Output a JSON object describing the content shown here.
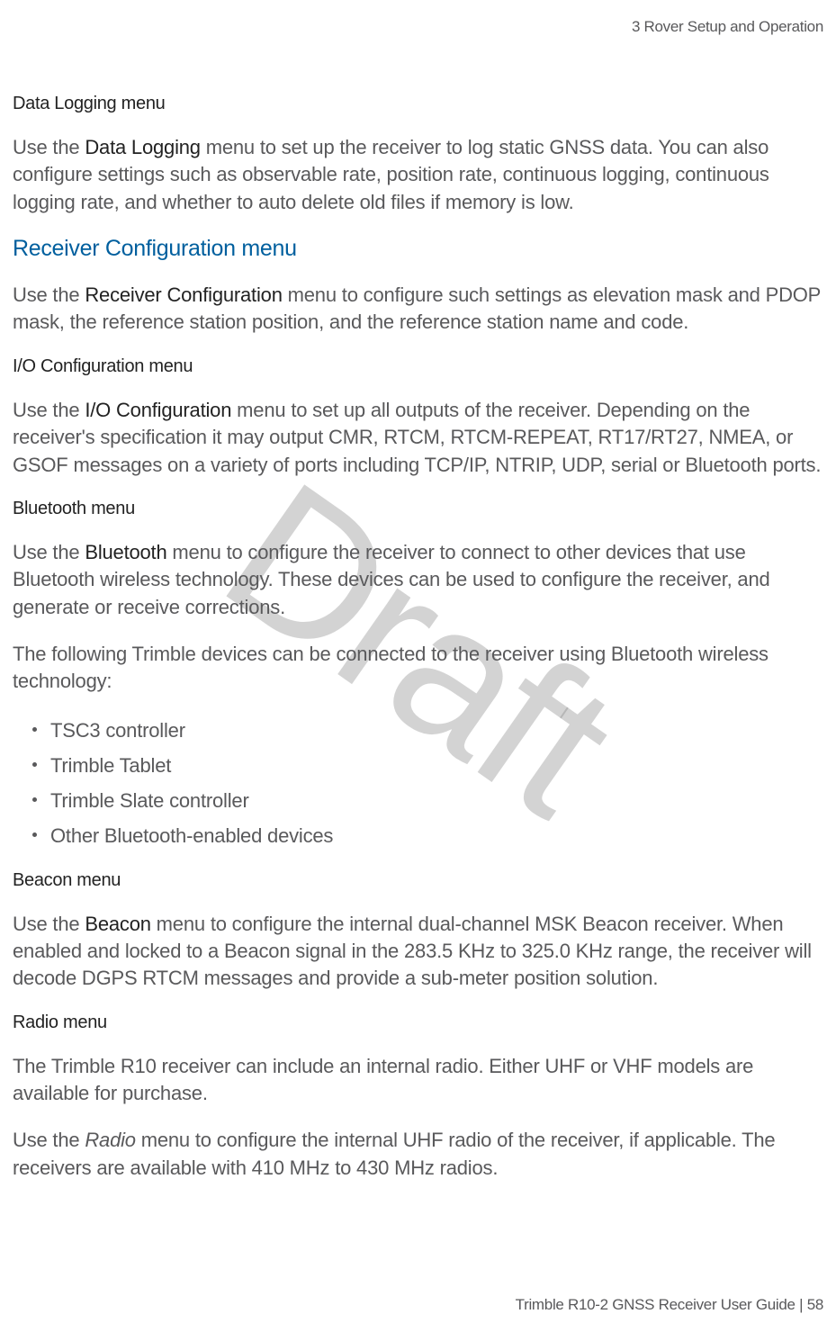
{
  "header": {
    "chapter": "3   Rover Setup and Operation"
  },
  "watermark": "Draft",
  "sections": {
    "data_logging": {
      "heading": "Data Logging menu",
      "para_pre": "Use the ",
      "bold": "Data Logging",
      "para_post": " menu to set up the receiver to log static GNSS data. You can also configure settings such as observable rate, position rate, continuous logging, continuous logging rate, and whether to auto delete old files if memory is low."
    },
    "receiver_config": {
      "heading": "Receiver Configuration menu",
      "para_pre": "Use the ",
      "bold": "Receiver Configuration",
      "para_post": " menu to configure such settings as elevation mask and PDOP mask, the reference station position, and the reference station name and code."
    },
    "io_config": {
      "heading": "I/O Configuration menu",
      "para_pre": "Use the ",
      "bold": "I/O Configuration",
      "para_post": " menu to set up all outputs of the receiver. Depending on the receiver's specification it may output CMR, RTCM, RTCM-REPEAT, RT17/RT27, NMEA, or GSOF messages on a variety of ports including TCP/IP, NTRIP, UDP, serial or Bluetooth ports."
    },
    "bluetooth": {
      "heading": "Bluetooth menu",
      "para1_pre": "Use the ",
      "bold": "Bluetooth",
      "para1_post": " menu to configure the receiver to connect to other devices that use Bluetooth wireless technology. These devices can be used to configure the receiver, and generate or receive corrections.",
      "para2": "The following Trimble devices can be connected to the receiver using Bluetooth wireless technology:",
      "items": [
        "TSC3 controller",
        "Trimble Tablet",
        "Trimble Slate controller",
        "Other Bluetooth-enabled devices"
      ]
    },
    "beacon": {
      "heading": "Beacon menu",
      "para_pre": "Use the ",
      "bold": "Beacon",
      "para_post": " menu to configure the internal dual-channel MSK Beacon receiver. When enabled and locked to a Beacon signal in the 283.5 KHz to 325.0 KHz range, the receiver will decode DGPS RTCM messages and provide a sub-meter position solution."
    },
    "radio": {
      "heading": "Radio menu",
      "para1": "The Trimble R10 receiver can include an internal radio. Either UHF or VHF models are available for purchase.",
      "para2_pre": "Use the ",
      "italic": "Radio",
      "para2_post": " menu to configure the internal UHF radio of the receiver, if applicable. The receivers are available with 410 MHz to 430 MHz radios."
    }
  },
  "footer": {
    "text_pre": "Trimble R10-2 GNSS Receiver User Guide | ",
    "page": "58"
  }
}
